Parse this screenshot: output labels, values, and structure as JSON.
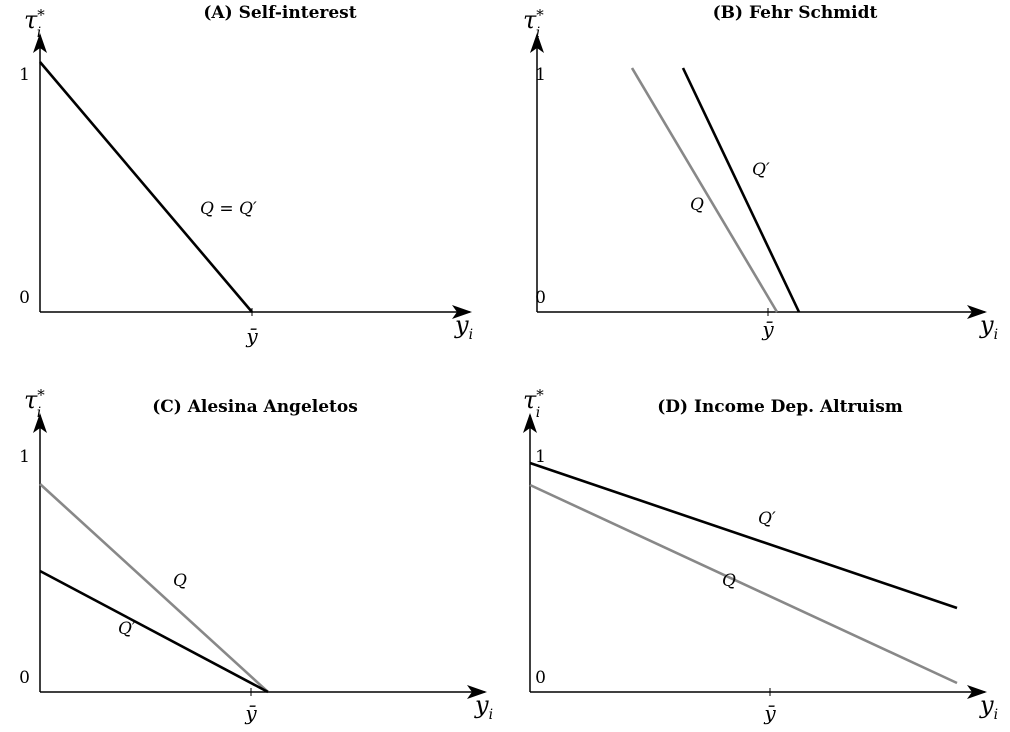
{
  "y_axis": {
    "symbol": "τ",
    "subscript": "i",
    "superscript": "*"
  },
  "x_axis": {
    "symbol": "y",
    "subscript": "i"
  },
  "x_tick": "ȳ",
  "panels": [
    {
      "title": "(A) Self-interest",
      "y_ticks": [
        "1",
        "0"
      ],
      "line_labels": [
        "Q = Q′"
      ]
    },
    {
      "title": "(B) Fehr Schmidt",
      "y_ticks": [
        "1",
        "0"
      ],
      "line_labels": [
        "Q′",
        "Q"
      ]
    },
    {
      "title": "(C) Alesina Angeletos",
      "y_ticks": [
        "1",
        "0"
      ],
      "line_labels": [
        "Q",
        "Q′"
      ]
    },
    {
      "title": "(D) Income Dep. Altruism",
      "y_ticks": [
        "1",
        "0"
      ],
      "line_labels": [
        "Q′",
        "Q"
      ]
    }
  ]
}
